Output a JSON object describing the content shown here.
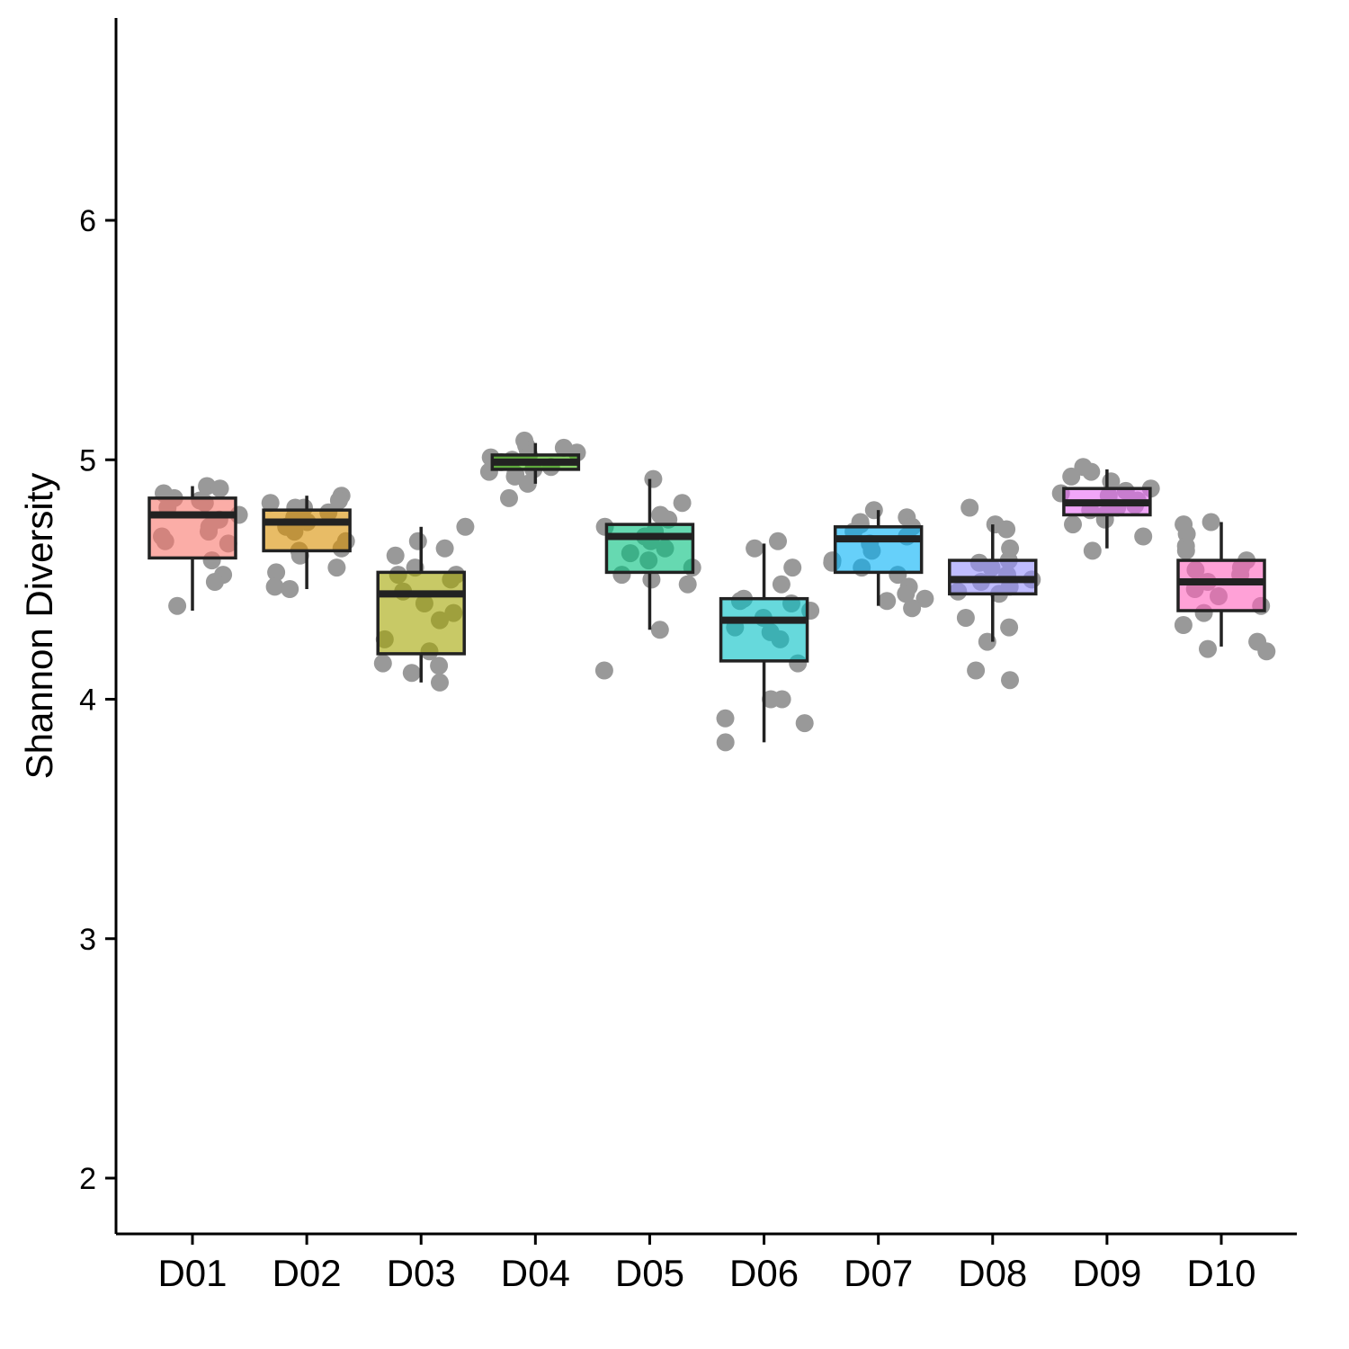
{
  "chart_data": {
    "type": "box",
    "title": "",
    "xlabel": "",
    "ylabel": "Shannon Diversity",
    "ylim": [
      1.77,
      6.8
    ],
    "yticks": [
      2,
      3,
      4,
      5,
      6
    ],
    "grid": false,
    "legend": "none",
    "categories": [
      "D01",
      "D02",
      "D03",
      "D04",
      "D05",
      "D06",
      "D07",
      "D08",
      "D09",
      "D10"
    ],
    "colors": [
      "#F8766D",
      "#D89000",
      "#A3A500",
      "#39B600",
      "#00BF7D",
      "#00BFC4",
      "#00B0F6",
      "#9590FF",
      "#E76BF3",
      "#FF62BC"
    ],
    "point_color": "#999999",
    "boxes": [
      {
        "q1": 4.59,
        "median": 4.77,
        "q3": 4.84,
        "whisker_low": 4.37,
        "whisker_high": 4.89
      },
      {
        "q1": 4.62,
        "median": 4.74,
        "q3": 4.79,
        "whisker_low": 4.46,
        "whisker_high": 4.85
      },
      {
        "q1": 4.19,
        "median": 4.44,
        "q3": 4.53,
        "whisker_low": 4.07,
        "whisker_high": 4.72
      },
      {
        "q1": 4.96,
        "median": 4.99,
        "q3": 5.02,
        "whisker_low": 4.9,
        "whisker_high": 5.07
      },
      {
        "q1": 4.53,
        "median": 4.68,
        "q3": 4.73,
        "whisker_low": 4.29,
        "whisker_high": 4.92
      },
      {
        "q1": 4.16,
        "median": 4.33,
        "q3": 4.42,
        "whisker_low": 3.82,
        "whisker_high": 4.65
      },
      {
        "q1": 4.53,
        "median": 4.67,
        "q3": 4.72,
        "whisker_low": 4.39,
        "whisker_high": 4.79
      },
      {
        "q1": 4.44,
        "median": 4.5,
        "q3": 4.58,
        "whisker_low": 4.24,
        "whisker_high": 4.73
      },
      {
        "q1": 4.77,
        "median": 4.82,
        "q3": 4.88,
        "whisker_low": 4.63,
        "whisker_high": 4.96
      },
      {
        "q1": 4.37,
        "median": 4.49,
        "q3": 4.58,
        "whisker_low": 4.22,
        "whisker_high": 4.74
      }
    ],
    "points": [
      [
        4.89,
        4.84,
        4.82,
        4.77,
        4.72,
        4.7,
        4.68,
        4.65,
        4.58,
        4.52,
        4.49,
        4.39,
        4.88,
        4.86,
        4.83,
        4.8,
        4.66,
        4.75
      ],
      [
        4.85,
        4.83,
        4.82,
        4.8,
        4.78,
        4.76,
        4.72,
        4.7,
        4.66,
        4.63,
        4.62,
        4.6,
        4.55,
        4.53,
        4.47,
        4.46,
        4.8,
        4.74
      ],
      [
        4.72,
        4.66,
        4.63,
        4.6,
        4.55,
        4.52,
        4.5,
        4.45,
        4.4,
        4.36,
        4.33,
        4.25,
        4.2,
        4.15,
        4.14,
        4.11,
        4.07,
        4.52
      ],
      [
        5.08,
        5.06,
        5.04,
        5.03,
        5.02,
        5.01,
        5.0,
        4.99,
        4.97,
        4.95,
        4.94,
        4.93,
        4.9,
        4.84,
        5.05,
        4.96
      ],
      [
        4.92,
        4.82,
        4.77,
        4.75,
        4.72,
        4.7,
        4.68,
        4.66,
        4.63,
        4.61,
        4.58,
        4.55,
        4.52,
        4.5,
        4.48,
        4.29,
        4.12,
        4.76
      ],
      [
        4.66,
        4.63,
        4.55,
        4.48,
        4.42,
        4.4,
        4.37,
        4.34,
        4.3,
        4.28,
        4.25,
        4.15,
        4.0,
        4.0,
        3.92,
        3.9,
        3.82,
        4.41
      ],
      [
        4.79,
        4.76,
        4.73,
        4.72,
        4.7,
        4.68,
        4.65,
        4.62,
        4.58,
        4.55,
        4.52,
        4.47,
        4.44,
        4.42,
        4.41,
        4.38,
        4.74,
        4.57
      ],
      [
        4.8,
        4.73,
        4.71,
        4.63,
        4.58,
        4.55,
        4.52,
        4.5,
        4.47,
        4.45,
        4.44,
        4.34,
        4.3,
        4.24,
        4.12,
        4.08,
        4.57,
        4.49
      ],
      [
        4.97,
        4.95,
        4.93,
        4.91,
        4.88,
        4.87,
        4.85,
        4.83,
        4.81,
        4.79,
        4.77,
        4.75,
        4.73,
        4.68,
        4.62,
        4.86,
        4.8
      ],
      [
        4.74,
        4.73,
        4.69,
        4.64,
        4.62,
        4.58,
        4.55,
        4.52,
        4.49,
        4.46,
        4.43,
        4.39,
        4.36,
        4.31,
        4.24,
        4.21,
        4.2,
        4.54
      ]
    ]
  }
}
